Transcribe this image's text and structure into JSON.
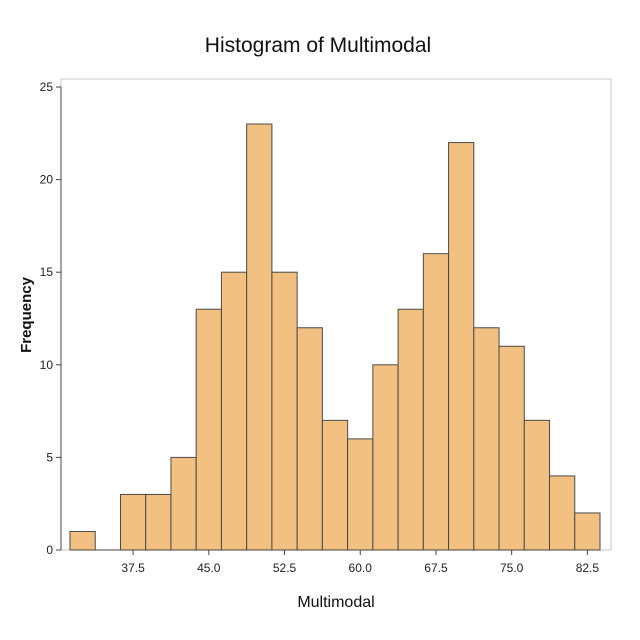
{
  "chart_data": {
    "type": "bar",
    "title": "Histogram of Multimodal",
    "xlabel": "Multimodal",
    "ylabel": "Frequency",
    "bin_width": 2.5,
    "xlim": [
      30.0,
      85.0
    ],
    "ylim": [
      0,
      25
    ],
    "x_ticks": [
      "37.5",
      "45.0",
      "52.5",
      "60.0",
      "67.5",
      "75.0",
      "82.5"
    ],
    "y_ticks": [
      "0",
      "5",
      "10",
      "15",
      "20",
      "25"
    ],
    "bins": [
      {
        "x": 32.5,
        "count": 1
      },
      {
        "x": 35.0,
        "count": 0
      },
      {
        "x": 37.5,
        "count": 3
      },
      {
        "x": 40.0,
        "count": 3
      },
      {
        "x": 42.5,
        "count": 5
      },
      {
        "x": 45.0,
        "count": 13
      },
      {
        "x": 47.5,
        "count": 15
      },
      {
        "x": 50.0,
        "count": 23
      },
      {
        "x": 52.5,
        "count": 15
      },
      {
        "x": 55.0,
        "count": 12
      },
      {
        "x": 57.5,
        "count": 7
      },
      {
        "x": 60.0,
        "count": 6
      },
      {
        "x": 62.5,
        "count": 10
      },
      {
        "x": 65.0,
        "count": 13
      },
      {
        "x": 67.5,
        "count": 16
      },
      {
        "x": 70.0,
        "count": 22
      },
      {
        "x": 72.5,
        "count": 12
      },
      {
        "x": 75.0,
        "count": 11
      },
      {
        "x": 77.5,
        "count": 7
      },
      {
        "x": 80.0,
        "count": 4
      },
      {
        "x": 82.5,
        "count": 2
      }
    ],
    "grid": false,
    "legend": "none",
    "colors": {
      "bar_fill": "#F2C080",
      "bar_stroke": "#4A4A4A",
      "axis": "#444444",
      "frame": "#C8C8C8",
      "background": "#FFFFFF"
    }
  }
}
